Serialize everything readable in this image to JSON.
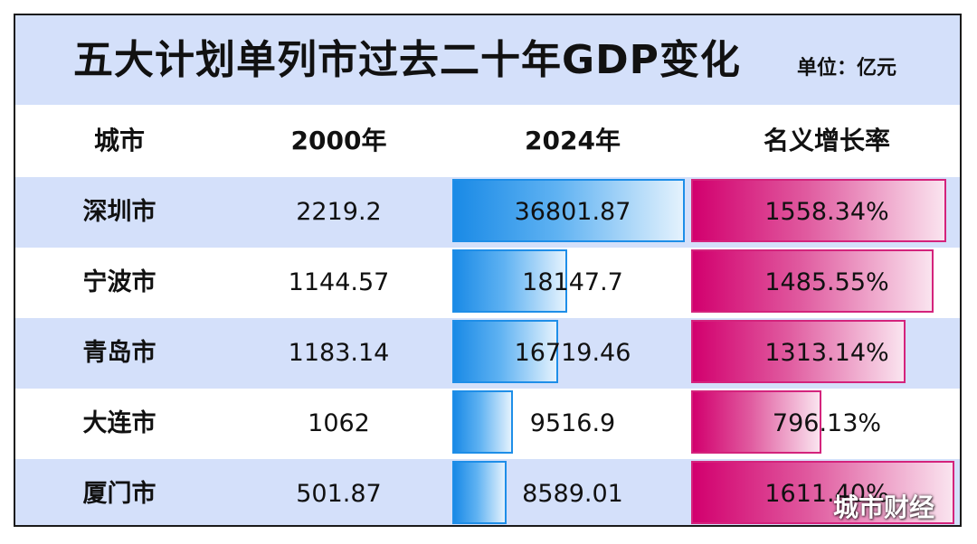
{
  "title": "五大计划单列市过去二十年GDP变化",
  "unit": "单位：亿元",
  "watermark": "城市财经",
  "colors": {
    "header_bg": "#d4e0fa",
    "bar_2024": "#1a8ae6",
    "bar_rate": "#d2006e"
  },
  "chart_data": {
    "type": "table",
    "title": "五大计划单列市过去二十年GDP变化",
    "unit": "单位：亿元",
    "columns": [
      "城市",
      "2000年",
      "2024年",
      "名义增长率"
    ],
    "rows": [
      {
        "city": "深圳市",
        "gdp_2000": "2219.2",
        "gdp_2024": "36801.87",
        "rate": "1558.34%",
        "gdp_2024_value": 36801.87,
        "rate_value": 1558.34
      },
      {
        "city": "宁波市",
        "gdp_2000": "1144.57",
        "gdp_2024": "18147.7",
        "rate": "1485.55%",
        "gdp_2024_value": 18147.7,
        "rate_value": 1485.55
      },
      {
        "city": "青岛市",
        "gdp_2000": "1183.14",
        "gdp_2024": "16719.46",
        "rate": "1313.14%",
        "gdp_2024_value": 16719.46,
        "rate_value": 1313.14
      },
      {
        "city": "大连市",
        "gdp_2000": "1062",
        "gdp_2024": "9516.9",
        "rate": "796.13%",
        "gdp_2024_value": 9516.9,
        "rate_value": 796.13
      },
      {
        "city": "厦门市",
        "gdp_2000": "501.87",
        "gdp_2024": "8589.01",
        "rate": "1611.40%",
        "gdp_2024_value": 8589.01,
        "rate_value": 1611.4
      }
    ]
  }
}
